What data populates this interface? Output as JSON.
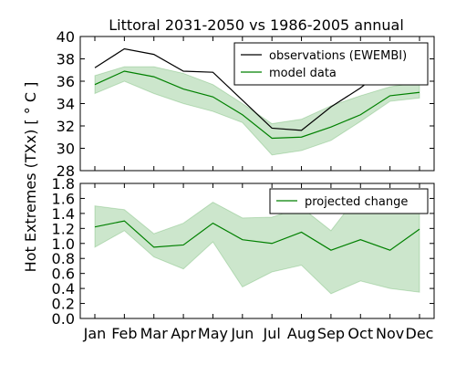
{
  "chart_data": {
    "title": "Littoral 2031-2050 vs 1986-2005 annual",
    "ylabel": "Hot Extremes (TXx) [$^\\circ C$]",
    "ylabel_display": "Hot Extremes (TXx) [ ° C ]",
    "categories": [
      "Jan",
      "Feb",
      "Mar",
      "Apr",
      "May",
      "Jun",
      "Jul",
      "Aug",
      "Sep",
      "Oct",
      "Nov",
      "Dec"
    ],
    "panels": [
      {
        "type": "line",
        "ylim": [
          28,
          40
        ],
        "yticks": [
          "28",
          "30",
          "32",
          "34",
          "36",
          "38",
          "40"
        ],
        "yticks_values": [
          28,
          30,
          32,
          34,
          36,
          38,
          40
        ],
        "legend_position": "top-right",
        "series": [
          {
            "name": "observations (EWEMBI)",
            "color": "#000000",
            "values": [
              37.2,
              38.9,
              38.4,
              36.9,
              36.8,
              34.3,
              31.8,
              31.6,
              33.7,
              35.4,
              37.5,
              36.8
            ]
          },
          {
            "name": "model data",
            "color": "#008000",
            "values": [
              35.7,
              36.9,
              36.4,
              35.3,
              34.6,
              33.0,
              30.9,
              31.0,
              31.9,
              33.0,
              34.7,
              35.0
            ],
            "band_lower": [
              34.9,
              36.0,
              34.9,
              34.0,
              33.3,
              32.3,
              29.4,
              29.8,
              30.7,
              32.4,
              34.2,
              34.5
            ],
            "band_upper": [
              36.5,
              37.3,
              37.3,
              36.7,
              35.7,
              34.0,
              32.2,
              32.6,
              33.8,
              34.7,
              35.5,
              35.9
            ]
          }
        ]
      },
      {
        "type": "line",
        "ylim": [
          0.0,
          1.8
        ],
        "yticks": [
          "0.0",
          "0.2",
          "0.4",
          "0.6",
          "0.8",
          "1.0",
          "1.2",
          "1.4",
          "1.6",
          "1.8"
        ],
        "yticks_values": [
          0,
          0.2,
          0.4,
          0.6,
          0.8,
          1.0,
          1.2,
          1.4,
          1.6,
          1.8
        ],
        "legend_position": "top-right",
        "series": [
          {
            "name": "projected change",
            "color": "#008000",
            "values": [
              1.22,
              1.3,
              0.95,
              0.98,
              1.27,
              1.05,
              1.0,
              1.15,
              0.91,
              1.05,
              0.91,
              1.19
            ],
            "band_lower": [
              0.95,
              1.17,
              0.82,
              0.66,
              1.02,
              0.42,
              0.62,
              0.71,
              0.33,
              0.5,
              0.4,
              0.35
            ],
            "band_upper": [
              1.5,
              1.45,
              1.13,
              1.27,
              1.55,
              1.34,
              1.35,
              1.48,
              1.17,
              1.68,
              1.55,
              1.6
            ]
          }
        ]
      }
    ],
    "band_color": "#008000"
  }
}
